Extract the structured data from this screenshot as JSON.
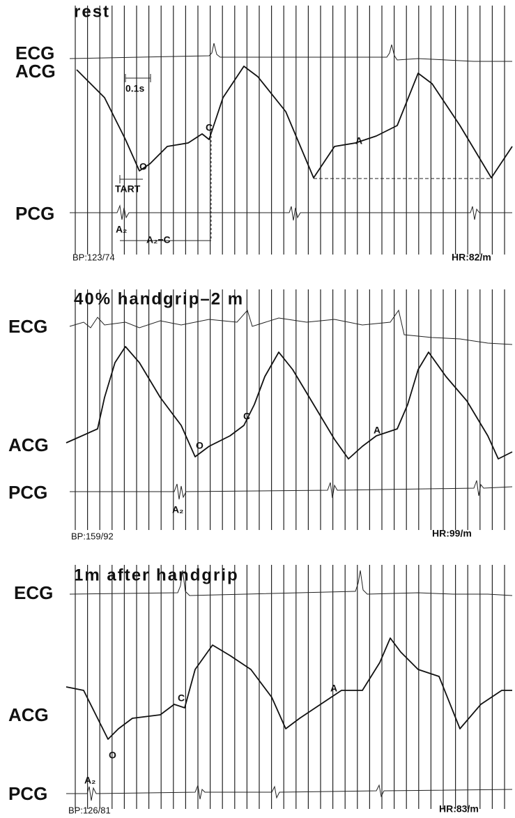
{
  "panels": [
    {
      "title": "rest",
      "ecg": "ECG",
      "acg": "ACG",
      "pcg": "PCG",
      "scale": "0.1s",
      "o": "O",
      "c": "C",
      "a": "A",
      "tart": "TART",
      "a2": "A₂",
      "a2c": "A₂−C",
      "bp": "BP:123/74",
      "hr": "HR:82/m"
    },
    {
      "title": "40% handgrip–2 m",
      "ecg": "ECG",
      "acg": "ACG",
      "pcg": "PCG",
      "o": "O",
      "c": "C",
      "a": "A",
      "a2": "A₂",
      "bp": "BP:159/92",
      "hr": "HR:99/m"
    },
    {
      "title": "1m after handgrip",
      "ecg": "ECG",
      "acg": "ACG",
      "pcg": "PCG",
      "o": "O",
      "c": "C",
      "a": "A",
      "a2": "A₂",
      "bp": "BP:126/81",
      "hr": "HR:83/m"
    }
  ]
}
